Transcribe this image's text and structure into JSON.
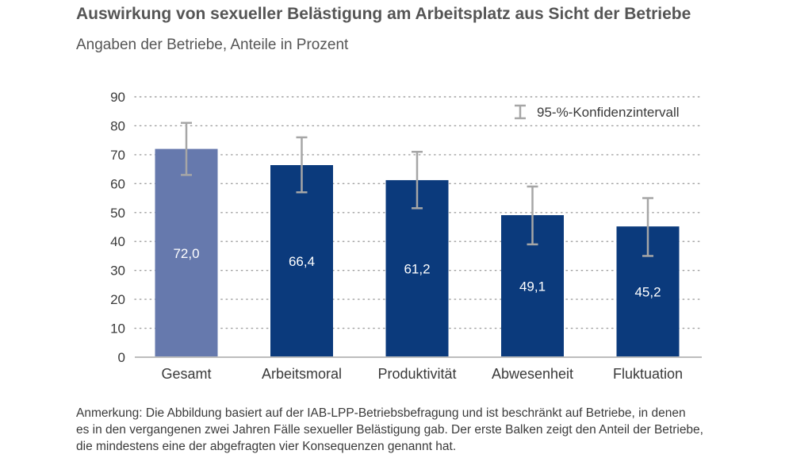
{
  "header": {
    "title": "Auswirkung von sexueller Belästigung am Arbeitsplatz aus Sicht der Betriebe",
    "subtitle": "Angaben der Betriebe, Anteile in Prozent"
  },
  "note": {
    "lines": [
      "Anmerkung: Die Abbildung basiert auf der IAB-LPP-Betriebsbefragung und ist beschränkt auf Betriebe, in denen",
      "es in den vergangenen zwei Jahren Fälle sexueller Belästigung gab. Der erste Balken zeigt den Anteil der Betriebe,",
      "die mindestens eine der abgefragten vier Konsequenzen genannt hat."
    ]
  },
  "chart_data": {
    "type": "bar",
    "title": "Auswirkung von sexueller Belästigung am Arbeitsplatz aus Sicht der Betriebe",
    "subtitle": "Angaben der Betriebe, Anteile in Prozent",
    "categories": [
      "Gesamt",
      "Arbeitsmoral",
      "Produktivität",
      "Abwesenheit",
      "Fluktuation"
    ],
    "values": [
      72.0,
      66.4,
      61.2,
      49.1,
      45.2
    ],
    "value_labels": [
      "72,0",
      "66,4",
      "61,2",
      "49,1",
      "45,2"
    ],
    "ci_low": [
      63,
      57,
      51.5,
      39,
      35
    ],
    "ci_high": [
      81,
      76,
      71,
      59,
      55
    ],
    "legend": {
      "ci_label": "95-%-Konfidenzintervall",
      "position": "top-right"
    },
    "ylim": [
      0,
      90
    ],
    "yticks": [
      0,
      10,
      20,
      30,
      40,
      50,
      60,
      70,
      80,
      90
    ],
    "grid": true,
    "colors": {
      "first_bar": "#6679ad",
      "bar": "#0b3a7c",
      "error_bar": "#a6a6a6",
      "grid": "#a0a0a0",
      "value_text": "#ffffff"
    }
  }
}
